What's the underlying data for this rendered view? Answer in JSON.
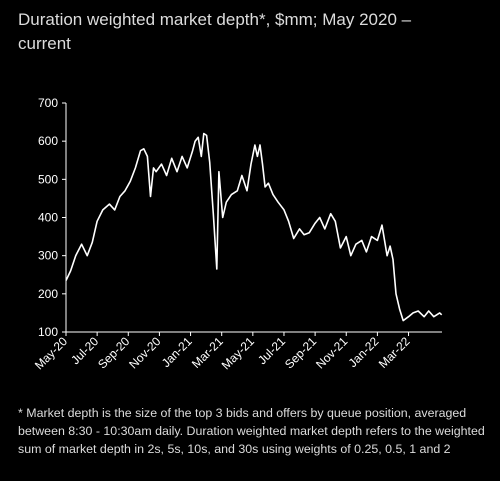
{
  "title": "Duration weighted market depth*, $mm; May 2020 – current",
  "footnote": "* Market depth is the size of the top 3 bids and offers by queue position, averaged between 8:30 - 10:30am daily. Duration weighted market depth refers to the weighted sum of market depth in 2s, 5s, 10s, and 30s using weights of 0.25, 0.5, 1 and 2",
  "colors": {
    "background": "#000000",
    "line": "#ffffff",
    "text": "#dcdcdc"
  },
  "chart_data": {
    "type": "line",
    "title": "Duration weighted market depth*, $mm; May 2020 – current",
    "ylim": [
      100,
      700
    ],
    "yticks": [
      100,
      200,
      300,
      400,
      500,
      600,
      700
    ],
    "xlim": [
      "2020-05",
      "2022-05"
    ],
    "xticks": [
      "May-20",
      "Jul-20",
      "Sep-20",
      "Nov-20",
      "Jan-21",
      "Mar-21",
      "May-21",
      "Jul-21",
      "Sep-21",
      "Nov-21",
      "Jan-22",
      "Mar-22"
    ],
    "grid": false,
    "legend": "none",
    "series": [
      {
        "x": [
          "2020-05-01",
          "2020-05-10",
          "2020-05-20",
          "2020-06-01",
          "2020-06-12",
          "2020-06-22",
          "2020-07-01",
          "2020-07-12",
          "2020-07-25",
          "2020-08-05",
          "2020-08-15",
          "2020-08-25",
          "2020-09-05",
          "2020-09-15",
          "2020-09-25",
          "2020-10-01",
          "2020-10-08",
          "2020-10-14",
          "2020-10-20",
          "2020-10-25",
          "2020-11-05",
          "2020-11-15",
          "2020-11-25",
          "2020-12-05",
          "2020-12-15",
          "2020-12-25",
          "2021-01-05",
          "2021-01-10",
          "2021-01-16",
          "2021-01-22",
          "2021-01-27",
          "2021-02-02",
          "2021-02-08",
          "2021-02-15",
          "2021-02-22",
          "2021-02-26",
          "2021-03-03",
          "2021-03-10",
          "2021-03-20",
          "2021-04-01",
          "2021-04-10",
          "2021-04-20",
          "2021-04-28",
          "2021-05-05",
          "2021-05-10",
          "2021-05-15",
          "2021-05-20",
          "2021-05-25",
          "2021-06-01",
          "2021-06-10",
          "2021-06-20",
          "2021-07-01",
          "2021-07-10",
          "2021-07-20",
          "2021-08-01",
          "2021-08-10",
          "2021-08-20",
          "2021-09-01",
          "2021-09-10",
          "2021-09-20",
          "2021-10-01",
          "2021-10-10",
          "2021-10-20",
          "2021-11-01",
          "2021-11-10",
          "2021-11-20",
          "2021-12-01",
          "2021-12-10",
          "2021-12-20",
          "2022-01-01",
          "2022-01-10",
          "2022-01-20",
          "2022-01-26",
          "2022-02-01",
          "2022-02-07",
          "2022-02-14",
          "2022-02-21",
          "2022-03-01",
          "2022-03-10",
          "2022-03-20",
          "2022-04-01",
          "2022-04-10",
          "2022-04-20",
          "2022-05-01",
          "2022-05-05"
        ],
        "values": [
          235,
          260,
          300,
          330,
          300,
          335,
          390,
          420,
          435,
          420,
          455,
          470,
          495,
          530,
          575,
          580,
          560,
          455,
          530,
          520,
          540,
          510,
          555,
          520,
          560,
          530,
          575,
          600,
          610,
          560,
          620,
          615,
          545,
          410,
          265,
          520,
          400,
          440,
          460,
          470,
          510,
          470,
          540,
          590,
          560,
          590,
          540,
          480,
          490,
          460,
          440,
          420,
          390,
          345,
          370,
          355,
          360,
          385,
          400,
          370,
          410,
          390,
          320,
          350,
          300,
          330,
          340,
          310,
          350,
          340,
          380,
          300,
          325,
          290,
          200,
          160,
          130,
          140,
          150,
          155,
          140,
          155,
          140,
          150,
          145
        ]
      }
    ]
  }
}
